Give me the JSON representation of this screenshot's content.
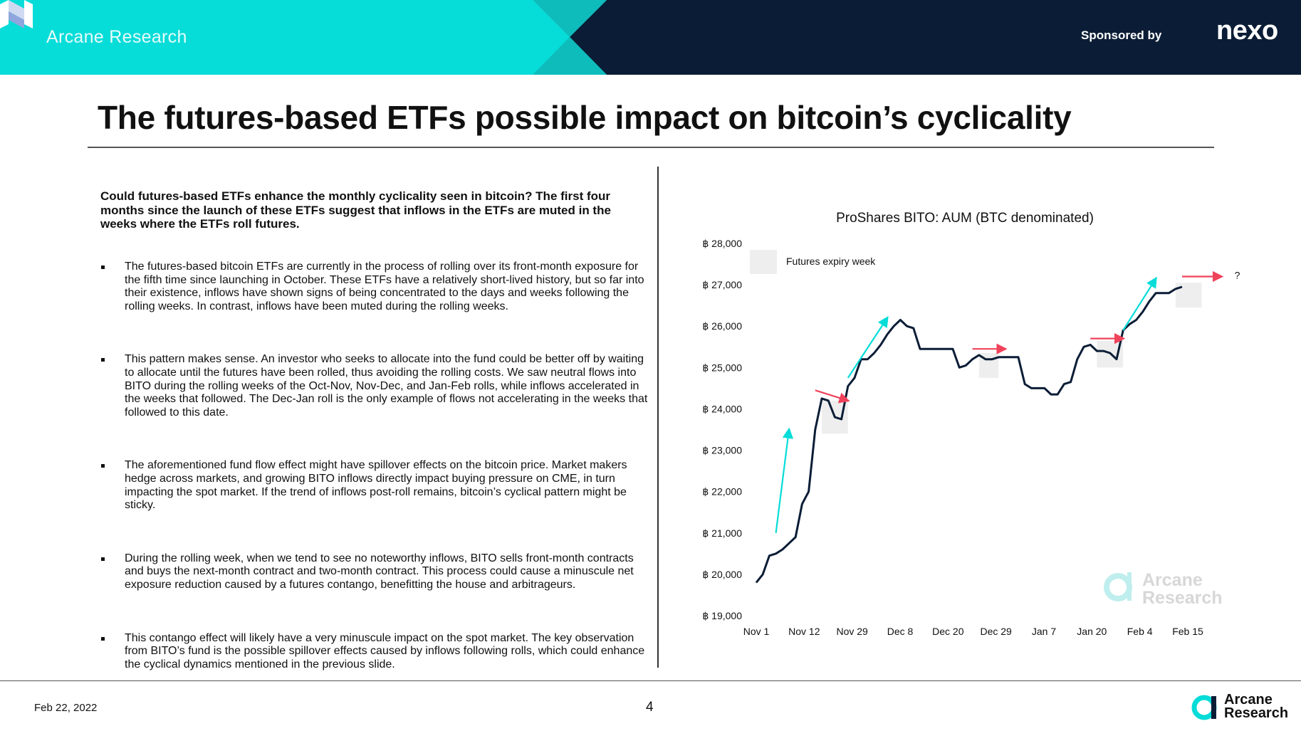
{
  "header": {
    "brand": "Arcane Research",
    "sponsor_label": "Sponsored by",
    "sponsor_name": "nexo",
    "colors": {
      "teal": "#06dcd8",
      "navy": "#0b1d36"
    }
  },
  "title": "The futures-based ETFs possible impact on bitcoin’s cyclicality",
  "intro": "Could futures-based ETFs enhance the monthly cyclicality seen in bitcoin? The first four months since the launch of these ETFs suggest that inflows in the ETFs are muted in the weeks where the ETFs roll futures.",
  "bullets": [
    "The futures-based bitcoin ETFs are currently in the process of rolling over its front-month exposure for the fifth time since launching in October. These ETFs have a relatively short-lived history, but so far into their existence, inflows have shown signs of being concentrated to the days and weeks following the rolling weeks. In contrast, inflows have been muted during the rolling weeks.",
    "This pattern makes sense. An investor who seeks to allocate into the fund could be better off by waiting to allocate until the futures have been rolled, thus avoiding the rolling costs. We saw neutral flows into BITO during the rolling weeks of the Oct-Nov, Nov-Dec, and Jan-Feb rolls, while inflows accelerated in the weeks that followed. The Dec-Jan roll is the only example of flows not accelerating in the weeks that followed to this date.",
    "The aforementioned fund flow effect might have spillover effects on the bitcoin price. Market makers hedge across markets, and growing BITO inflows directly impact buying pressure on CME, in turn impacting the spot market. If the trend of inflows post-roll remains, bitcoin’s cyclical pattern might be sticky.",
    "During the rolling week, when we tend to see no noteworthy inflows, BITO sells front-month contracts and buys the next-month contract and two-month contract. This process could cause a minuscule net exposure reduction caused by a futures contango, benefitting the house and arbitrageurs.",
    "This contango effect will likely have a very minuscule impact on the spot market. The key observation from BITO’s fund is the possible spillover effects caused by inflows following rolls, which could enhance the cyclical dynamics mentioned in the previous slide."
  ],
  "chart_data": {
    "type": "line",
    "title": "ProShares BITO: AUM (BTC denominated)",
    "xlabel": "",
    "ylabel": "",
    "ylim": [
      19000,
      28000
    ],
    "y_ticks": [
      19000,
      20000,
      21000,
      22000,
      23000,
      24000,
      25000,
      26000,
      27000,
      28000
    ],
    "y_tick_labels": [
      "฿ 19,000",
      "฿ 20,000",
      "฿ 21,000",
      "฿ 22,000",
      "฿ 23,000",
      "฿ 24,000",
      "฿ 25,000",
      "฿ 26,000",
      "฿ 27,000",
      "฿ 28,000"
    ],
    "x_tick_labels": [
      "Nov 1",
      "Nov 12",
      "Nov 29",
      "Dec 8",
      "Dec 20",
      "Dec 29",
      "Jan 7",
      "Jan 20",
      "Feb 4",
      "Feb 15"
    ],
    "grid": false,
    "legend": {
      "label": "Futures expiry week",
      "position": "top-left",
      "color": "#eeeeee"
    },
    "series": [
      {
        "color": "#0b1d36",
        "values": [
          19800,
          20000,
          20450,
          20500,
          20600,
          20750,
          20900,
          21700,
          22000,
          23500,
          24250,
          24200,
          23800,
          23750,
          24550,
          24750,
          25200,
          25200,
          25350,
          25550,
          25800,
          26000,
          26150,
          26000,
          25950,
          25450,
          25450,
          25450,
          25450,
          25450,
          25450,
          25000,
          25050,
          25200,
          25300,
          25200,
          25200,
          25250,
          25250,
          25250,
          25250,
          24600,
          24500,
          24500,
          24500,
          24350,
          24350,
          24600,
          24650,
          25200,
          25500,
          25550,
          25400,
          25400,
          25350,
          25200,
          25900,
          26050,
          26150,
          26350,
          26600,
          26800,
          26800,
          26800,
          26900,
          26950
        ]
      }
    ],
    "expiry_weeks": [
      {
        "start_index": 10,
        "end_index": 14,
        "ylim": [
          23400,
          24200
        ]
      },
      {
        "start_index": 34,
        "end_index": 37,
        "ylim": [
          24750,
          25350
        ]
      },
      {
        "start_index": 52,
        "end_index": 56,
        "ylim": [
          25000,
          25650
        ]
      },
      {
        "start_index": 64,
        "end_index": 68,
        "ylim": [
          26450,
          27050
        ]
      }
    ],
    "annotations": [
      {
        "type": "arrow",
        "color": "#06dcd8",
        "from": [
          3,
          21000
        ],
        "to": [
          5,
          23500
        ]
      },
      {
        "type": "arrow",
        "color": "#f0425a",
        "from": [
          9,
          24450
        ],
        "to": [
          14,
          24200
        ]
      },
      {
        "type": "arrow",
        "color": "#06dcd8",
        "from": [
          14,
          24750
        ],
        "to": [
          20,
          26200
        ]
      },
      {
        "type": "arrow",
        "color": "#f0425a",
        "from": [
          33,
          25450
        ],
        "to": [
          38,
          25450
        ]
      },
      {
        "type": "arrow",
        "color": "#f0425a",
        "from": [
          51,
          25700
        ],
        "to": [
          56,
          25700
        ]
      },
      {
        "type": "arrow",
        "color": "#06dcd8",
        "from": [
          56,
          25900
        ],
        "to": [
          61,
          27150
        ]
      },
      {
        "type": "arrow",
        "color": "#f0425a",
        "from": [
          65,
          27200
        ],
        "to": [
          71,
          27200
        ]
      },
      {
        "type": "text",
        "text": "?",
        "at": [
          73,
          27150
        ]
      }
    ],
    "watermark": [
      "Arcane",
      "Research"
    ]
  },
  "footer": {
    "date": "Feb 22, 2022",
    "page": "4",
    "logo_line1": "Arcane",
    "logo_line2": "Research"
  }
}
